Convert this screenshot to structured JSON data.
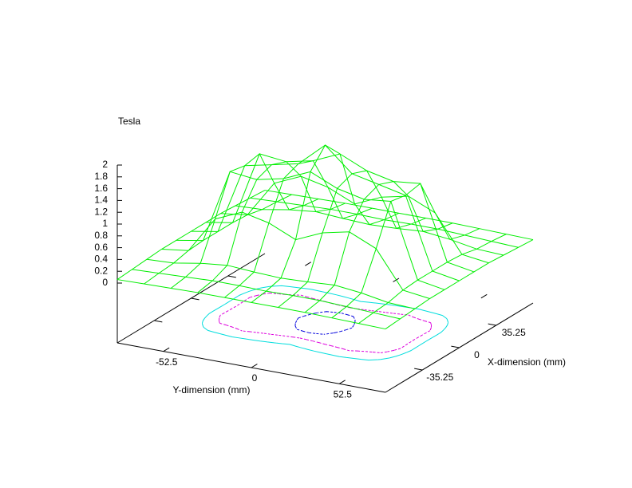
{
  "chart_data": {
    "type": "surface",
    "z_label": "Tesla",
    "x_label": "X-dimension (mm)",
    "y_label": "Y-dimension (mm)",
    "color": "#00ee00",
    "x": [
      -70.5,
      -56.4,
      -42.3,
      -28.2,
      -14.1,
      0,
      14.1,
      28.2,
      42.3,
      56.4,
      70.5
    ],
    "y": [
      -80,
      -64,
      -48,
      -32,
      -16,
      0,
      16,
      32,
      48,
      64,
      80
    ],
    "z": [
      [
        0.06,
        0.07,
        0.08,
        0.09,
        0.09,
        0.09,
        0.09,
        0.09,
        0.08,
        0.07,
        0.06
      ],
      [
        0.08,
        0.1,
        0.12,
        0.14,
        0.14,
        0.13,
        0.14,
        0.14,
        0.12,
        0.1,
        0.08
      ],
      [
        0.1,
        0.12,
        0.2,
        0.25,
        0.22,
        0.2,
        0.22,
        0.25,
        0.2,
        0.12,
        0.1
      ],
      [
        0.12,
        0.18,
        0.8,
        1.0,
        0.9,
        0.7,
        0.9,
        1.0,
        0.8,
        0.18,
        0.12
      ],
      [
        0.12,
        0.2,
        1.45,
        1.4,
        1.5,
        1.7,
        1.5,
        1.4,
        1.45,
        0.2,
        0.12
      ],
      [
        0.12,
        0.2,
        1.4,
        1.5,
        1.6,
        2.0,
        1.6,
        1.5,
        1.4,
        0.2,
        0.12
      ],
      [
        0.12,
        0.2,
        1.45,
        1.4,
        1.5,
        1.7,
        1.5,
        1.4,
        1.45,
        0.2,
        0.12
      ],
      [
        0.12,
        0.18,
        0.8,
        1.0,
        0.9,
        0.7,
        0.9,
        1.0,
        0.8,
        0.18,
        0.12
      ],
      [
        0.1,
        0.12,
        0.2,
        0.25,
        0.22,
        0.2,
        0.22,
        0.25,
        0.2,
        0.12,
        0.1
      ],
      [
        0.08,
        0.1,
        0.12,
        0.14,
        0.14,
        0.13,
        0.14,
        0.14,
        0.12,
        0.1,
        0.08
      ],
      [
        0.06,
        0.07,
        0.08,
        0.09,
        0.09,
        0.09,
        0.09,
        0.09,
        0.08,
        0.07,
        0.06
      ]
    ],
    "contours": [
      {
        "level": 0.5,
        "color": "#00dddd"
      },
      {
        "level": 1.0,
        "color": "#dd00dd"
      },
      {
        "level": 1.6,
        "color": "#0000dd"
      }
    ],
    "xlim": [
      -70.5,
      70.5
    ],
    "ylim": [
      -80,
      80
    ],
    "zlim": [
      0,
      2
    ],
    "xticks": [
      -35.25,
      0,
      35.25
    ],
    "yticks": [
      -52.5,
      0,
      52.5
    ],
    "zticks": [
      0,
      0.2,
      0.4,
      0.6,
      0.8,
      1,
      1.2,
      1.4,
      1.6,
      1.8,
      2
    ]
  }
}
